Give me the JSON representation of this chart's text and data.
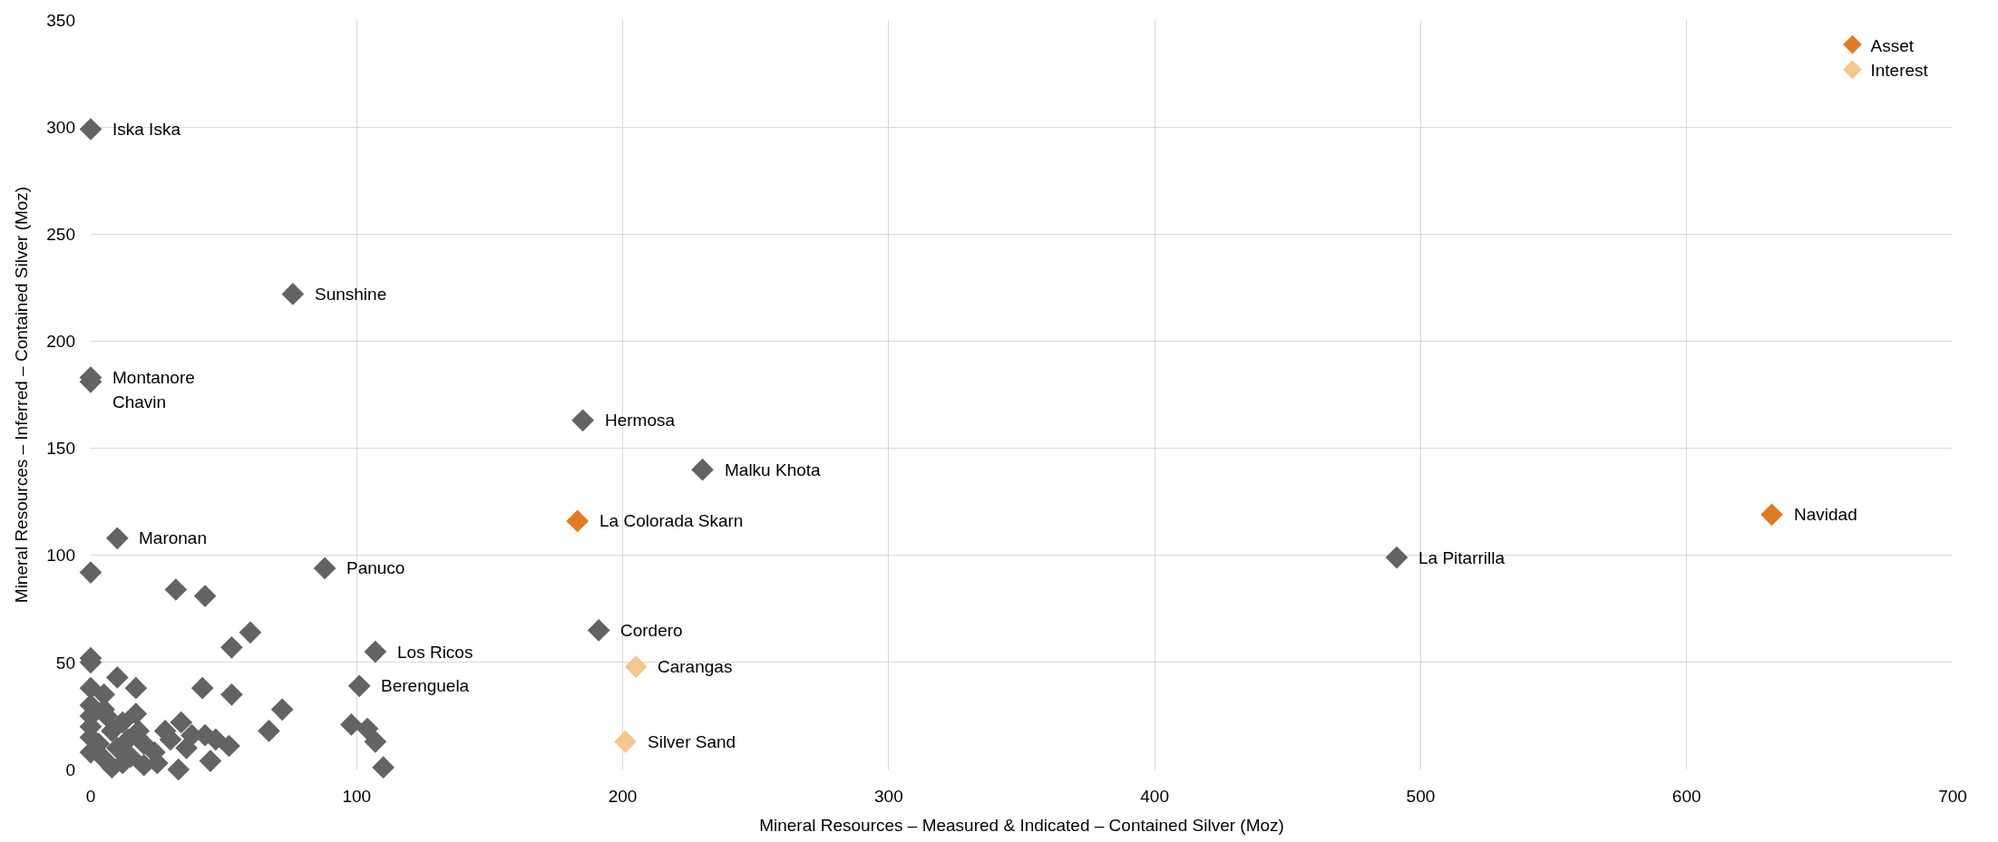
{
  "chart_data": {
    "type": "scatter",
    "xlabel": "Mineral Resources – Measured & Indicated – Contained Silver (Moz)",
    "ylabel": "Mineral Resources – Inferred – Contained Silver (Moz)",
    "xlim": [
      0,
      700
    ],
    "xticks": [
      0,
      100,
      200,
      300,
      400,
      500,
      600,
      700
    ],
    "ylim": [
      0,
      350
    ],
    "yticks": [
      0,
      50,
      100,
      150,
      200,
      250,
      300,
      350
    ],
    "grid": true,
    "legend": "top right",
    "marker": "diamond",
    "series": [
      {
        "color": "#636363",
        "x": [
          0,
          76,
          0,
          0,
          185,
          230,
          10,
          491,
          88,
          191,
          107,
          101,
          0,
          32,
          43,
          60,
          53,
          0,
          0,
          10,
          17,
          42,
          53,
          5,
          0,
          0,
          72,
          0,
          17,
          34,
          98,
          104,
          67,
          43,
          0,
          8,
          12,
          30,
          47,
          52,
          107,
          36,
          20,
          10,
          0,
          5,
          15,
          25,
          33,
          45,
          110,
          8,
          12,
          20,
          3,
          6,
          0,
          14,
          24,
          38,
          28,
          18,
          5
        ],
        "values": [
          299,
          222,
          183,
          181,
          163,
          140,
          108,
          99,
          94,
          65,
          55,
          39,
          92,
          84,
          81,
          64,
          57,
          52,
          50,
          43,
          38,
          38,
          35,
          35,
          38,
          30,
          28,
          25,
          26,
          22,
          21,
          19,
          18,
          16,
          15,
          18,
          22,
          14,
          14,
          11,
          13,
          10,
          12,
          10,
          8,
          5,
          6,
          3,
          0,
          4,
          1,
          1,
          3,
          2,
          12,
          25,
          20,
          14,
          8,
          16,
          18,
          18,
          28
        ]
      },
      {
        "name": "Asset",
        "color": "#e07b24",
        "x": [
          183,
          632
        ],
        "values": [
          116,
          119
        ]
      },
      {
        "name": "Interest",
        "color": "#f5c68e",
        "x": [
          205,
          201
        ],
        "values": [
          48,
          13
        ]
      }
    ],
    "annotations": [
      {
        "text": "Iska Iska",
        "x": 0,
        "y": 299
      },
      {
        "text": "Sunshine",
        "x": 76,
        "y": 222
      },
      {
        "text": "Montanore",
        "x": 0,
        "y": 183
      },
      {
        "text": "Chavin",
        "x": 0,
        "y": 181
      },
      {
        "text": "Hermosa",
        "x": 185,
        "y": 163
      },
      {
        "text": "Malku Khota",
        "x": 230,
        "y": 140
      },
      {
        "text": "Maronan",
        "x": 10,
        "y": 108
      },
      {
        "text": "La Pitarrilla",
        "x": 491,
        "y": 99
      },
      {
        "text": "Panuco",
        "x": 88,
        "y": 94
      },
      {
        "text": "Cordero",
        "x": 191,
        "y": 65
      },
      {
        "text": "Los Ricos",
        "x": 107,
        "y": 55
      },
      {
        "text": "Berenguela",
        "x": 101,
        "y": 39
      },
      {
        "text": "La Colorada Skarn",
        "x": 183,
        "y": 116
      },
      {
        "text": "Navidad",
        "x": 632,
        "y": 119
      },
      {
        "text": "Carangas",
        "x": 205,
        "y": 48
      },
      {
        "text": "Silver Sand",
        "x": 201,
        "y": 13
      }
    ]
  }
}
